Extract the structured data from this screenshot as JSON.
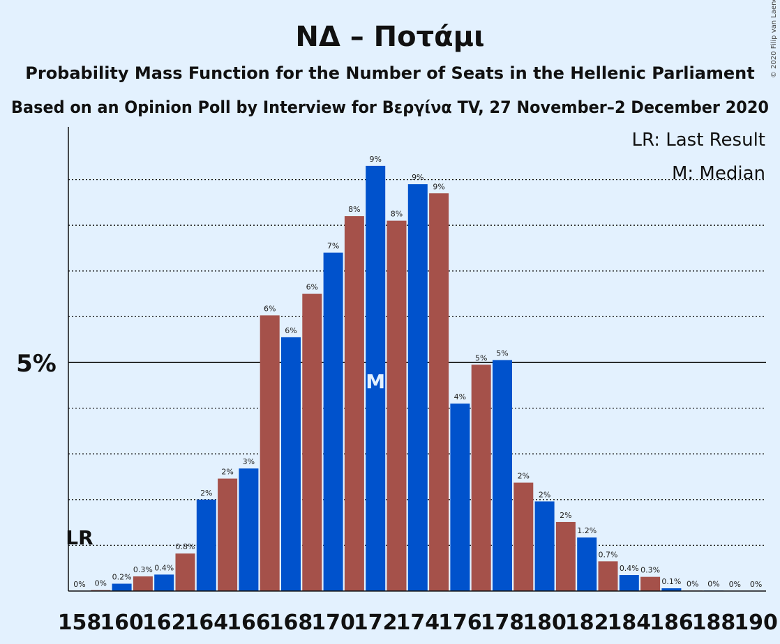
{
  "title": "ΝΔ – Ποτάμι",
  "subtitle1": "Probability Mass Function for the Number of Seats in the Hellenic Parliament",
  "subtitle2": "Based on an Opinion Poll by Interview for Βεργίνα TV, 27 November–2 December 2020",
  "copyright": "© 2020 Filip van Laenen",
  "legend": {
    "lr": "LR: Last Result",
    "median": "M: Median"
  },
  "markers": {
    "lr": "LR",
    "median": "M"
  },
  "colors": {
    "blue": "#0052cc",
    "red": "#a5514a",
    "background": "#e3f1fe"
  },
  "chart_data": {
    "type": "bar",
    "ylabel": "",
    "xlabel": "",
    "ylim": [
      0,
      10
    ],
    "y_ticks": [
      {
        "value": 5,
        "label": "5%"
      }
    ],
    "x_tick_labels": [
      "158",
      "160",
      "162",
      "164",
      "166",
      "168",
      "170",
      "172",
      "174",
      "176",
      "178",
      "180",
      "182",
      "184",
      "186",
      "188",
      "190"
    ],
    "last_result_seat": 158,
    "median_seat": 172,
    "series": [
      {
        "x": [
          158,
          159,
          160,
          161,
          162,
          163,
          164,
          165,
          166,
          167,
          168,
          169,
          170,
          171,
          172,
          173,
          174,
          175,
          176,
          177,
          178,
          179,
          180,
          181,
          182,
          183,
          184,
          185,
          186,
          187,
          188,
          189,
          190
        ],
        "values": [
          0,
          0.02,
          0.16,
          0.32,
          0.36,
          0.82,
          2.0,
          2.46,
          2.68,
          6.03,
          5.55,
          6.5,
          7.4,
          8.2,
          9.3,
          8.1,
          8.9,
          8.7,
          4.1,
          4.95,
          5.05,
          2.37,
          1.96,
          1.51,
          1.17,
          0.65,
          0.35,
          0.31,
          0.06,
          0.01,
          0.01,
          0,
          0
        ],
        "labels": [
          "0%",
          "0%",
          "0.2%",
          "0.3%",
          "0.4%",
          "0.8%",
          "2%",
          "2%",
          "3%",
          "6%",
          "6%",
          "6%",
          "7%",
          "8%",
          "9%",
          "8%",
          "9%",
          "9%",
          "4%",
          "5%",
          "5%",
          "2%",
          "2%",
          "2%",
          "1.2%",
          "0.7%",
          "0.4%",
          "0.3%",
          "0.1%",
          "0%",
          "0%",
          "0%",
          "0%"
        ]
      }
    ]
  }
}
